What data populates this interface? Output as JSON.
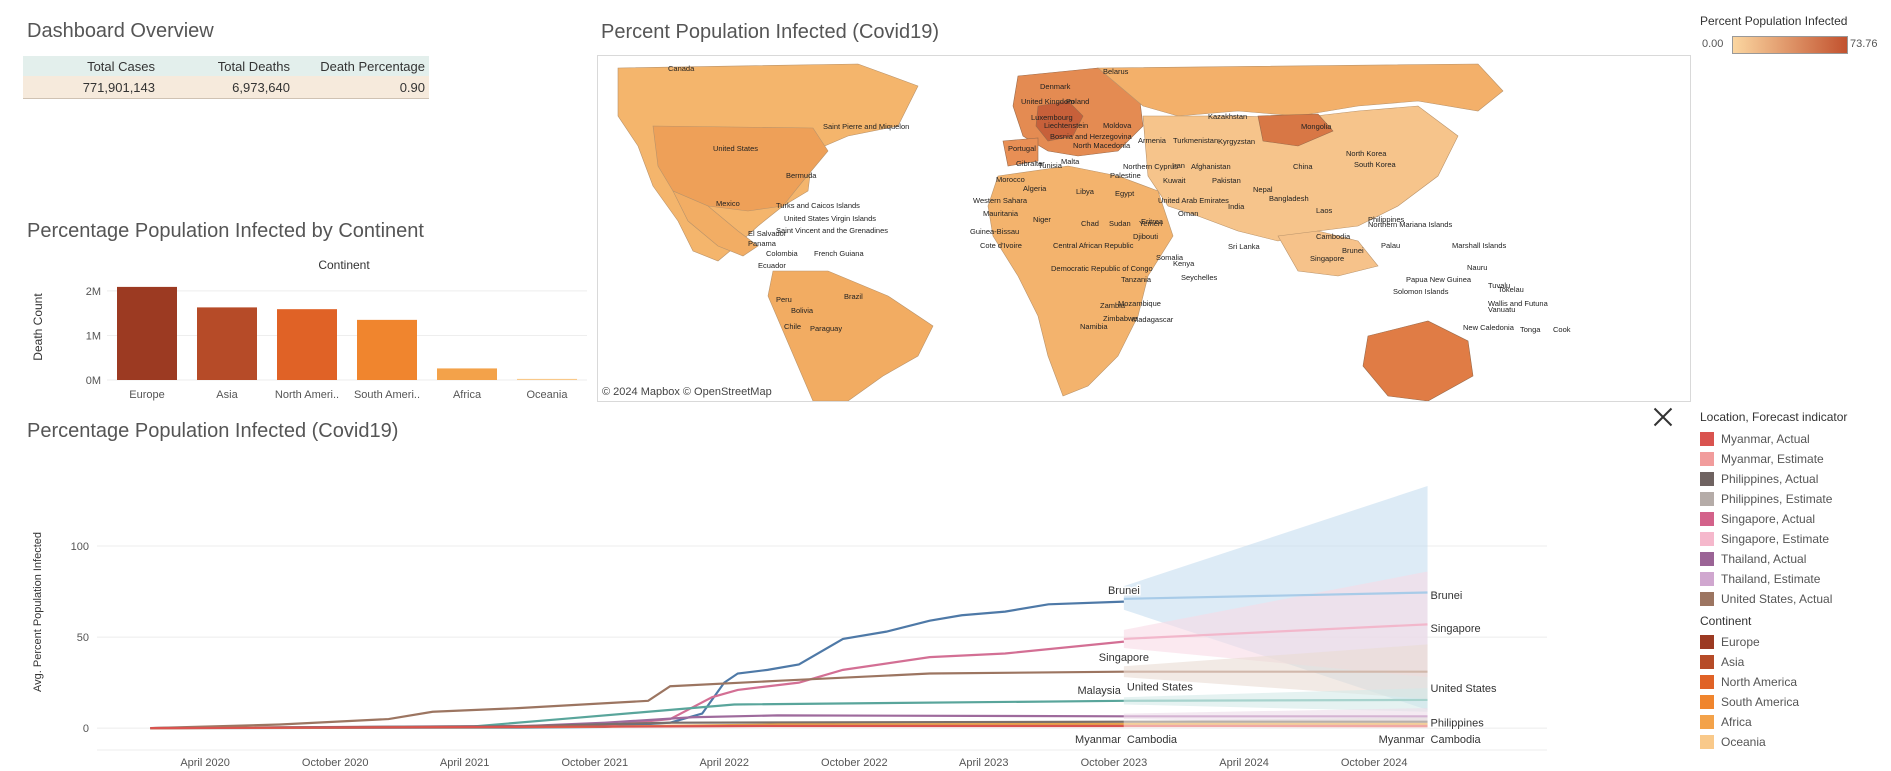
{
  "dashboard": {
    "title": "Dashboard Overview",
    "kpi": {
      "headers": [
        "Total Cases",
        "Total Deaths",
        "Death Percentage"
      ],
      "values": [
        "771,901,143",
        "6,973,640",
        "0.90"
      ]
    }
  },
  "map": {
    "title": "Percent Population Infected (Covid19)",
    "attribution": "© 2024 Mapbox  © OpenStreetMap",
    "legend": {
      "title": "Percent Population Infected",
      "min": "0.00",
      "max": "73.76",
      "color_low": "#fbd6a0",
      "color_high": "#c2522f"
    },
    "labels": [
      "Canada",
      "United States",
      "Saint Pierre and Miquelon",
      "Bermuda",
      "Mexico",
      "Turks and Caicos Islands",
      "United States Virgin Islands",
      "Saint Vincent and the Grenadines",
      "El Salvador",
      "Panama",
      "Colombia",
      "French Guiana",
      "Ecuador",
      "Brazil",
      "Peru",
      "Bolivia",
      "Chile",
      "Paraguay",
      "Denmark",
      "Belarus",
      "United Kingdom",
      "Poland",
      "Luxembourg",
      "Liechtenstein",
      "Moldova",
      "Bosnia and Herzegovina",
      "North Macedonia",
      "Portugal",
      "Gibraltar",
      "Tunisia",
      "Malta",
      "Northern Cyprus",
      "Palestine",
      "Morocco",
      "Algeria",
      "Libya",
      "Egypt",
      "Western Sahara",
      "Mauritania",
      "Niger",
      "Chad",
      "Sudan",
      "Eritrea",
      "Yemen",
      "Djibouti",
      "Guinea-Bissau",
      "Cote d'Ivoire",
      "Central African Republic",
      "Somalia",
      "Democratic Republic of Congo",
      "Kenya",
      "Tanzania",
      "Seychelles",
      "Zambia",
      "Mozambique",
      "Zimbabwe",
      "Madagascar",
      "Namibia",
      "Armenia",
      "Turkmenistan",
      "Kyrgyzstan",
      "Iran",
      "Afghanistan",
      "Kuwait",
      "Pakistan",
      "United Arab Emirates",
      "Oman",
      "India",
      "Nepal",
      "Bangladesh",
      "Sri Lanka",
      "Kazakhstan",
      "Mongolia",
      "China",
      "North Korea",
      "South Korea",
      "Laos",
      "Cambodia",
      "Brunei",
      "Singapore",
      "Philippines",
      "Northern Mariana Islands",
      "Palau",
      "Marshall Islands",
      "Nauru",
      "Papua New Guinea",
      "Solomon Islands",
      "Tuvalu",
      "Tokelau",
      "Wallis and Futuna",
      "Vanuatu",
      "New Caledonia",
      "Tonga",
      "Cook"
    ]
  },
  "continent_chart": {
    "title": "Percentage Population Infected by Continent",
    "header": "Continent",
    "chart_data": {
      "type": "bar",
      "categories": [
        "Europe",
        "Asia",
        "North Ameri..",
        "South Ameri..",
        "Africa",
        "Oceania"
      ],
      "values": [
        2090000,
        1630000,
        1590000,
        1350000,
        260000,
        25000
      ],
      "colors": [
        "#9c3a22",
        "#b64b28",
        "#e06226",
        "#f0852e",
        "#f3a24a",
        "#f9c98a"
      ],
      "ylabel": "Death Count",
      "yticks": [
        "2M",
        "1M",
        "0M"
      ],
      "ylim": [
        0,
        2200000
      ]
    }
  },
  "line_chart": {
    "title": "Percentage Population Infected (Covid19)",
    "chart_data": {
      "type": "line",
      "ylabel": "Avg. Percent Population Infected",
      "yticks": [
        0,
        50,
        100
      ],
      "ylim": [
        -12,
        150
      ],
      "xlim": [
        "2019-11-01",
        "2025-06-01"
      ],
      "xticks": [
        "April 2020",
        "October 2020",
        "April 2021",
        "October 2021",
        "April 2022",
        "October 2022",
        "April 2023",
        "October 2023",
        "April 2024",
        "October 2024"
      ],
      "forecast_start": "2023-10-15",
      "forecast_end": "2024-12-15",
      "series": [
        {
          "name": "Brunei",
          "color": "#4e79a7",
          "est_color": "#a8cbe8",
          "band_color": "#c6ddf0",
          "actual": [
            [
              "2020-01-15",
              0
            ],
            [
              "2021-06-15",
              0.3
            ],
            [
              "2021-10-15",
              0.7
            ],
            [
              "2022-01-15",
              3
            ],
            [
              "2022-03-01",
              8
            ],
            [
              "2022-04-01",
              25
            ],
            [
              "2022-04-20",
              30
            ],
            [
              "2022-06-01",
              32
            ],
            [
              "2022-07-15",
              35
            ],
            [
              "2022-09-15",
              49
            ],
            [
              "2022-11-15",
              53
            ],
            [
              "2023-01-15",
              59
            ],
            [
              "2023-03-01",
              62
            ],
            [
              "2023-05-01",
              64
            ],
            [
              "2023-07-01",
              68
            ],
            [
              "2023-10-15",
              69.5
            ]
          ],
          "estimate": [
            [
              "2023-10-15",
              71
            ],
            [
              "2024-12-15",
              74.5
            ]
          ],
          "band": [
            [
              65,
              78
            ],
            [
              10,
              133
            ]
          ]
        },
        {
          "name": "Singapore",
          "color": "#d36f94",
          "est_color": "#f2b7cb",
          "band_color": "#f9dbe6",
          "actual": [
            [
              "2020-01-15",
              0
            ],
            [
              "2021-10-15",
              1.5
            ],
            [
              "2022-01-15",
              5
            ],
            [
              "2022-03-15",
              17
            ],
            [
              "2022-04-20",
              21
            ],
            [
              "2022-07-15",
              25
            ],
            [
              "2022-09-15",
              32
            ],
            [
              "2023-01-15",
              39
            ],
            [
              "2023-05-01",
              41
            ],
            [
              "2023-10-15",
              47.5
            ]
          ],
          "estimate": [
            [
              "2023-10-15",
              49
            ],
            [
              "2024-12-15",
              57
            ]
          ],
          "band": [
            [
              44,
              54
            ],
            [
              28,
              86
            ]
          ]
        },
        {
          "name": "United States",
          "color": "#9c7561",
          "est_color": "#d1b8ab",
          "band_color": "#eadcd3",
          "actual": [
            [
              "2020-01-15",
              0
            ],
            [
              "2020-07-15",
              2
            ],
            [
              "2020-12-15",
              5
            ],
            [
              "2021-02-15",
              9
            ],
            [
              "2021-06-15",
              11
            ],
            [
              "2021-12-15",
              15
            ],
            [
              "2022-01-15",
              23
            ],
            [
              "2022-06-15",
              26
            ],
            [
              "2023-01-15",
              30
            ],
            [
              "2023-10-15",
              31
            ]
          ],
          "estimate": [
            [
              "2023-10-15",
              31
            ],
            [
              "2024-12-15",
              31
            ]
          ],
          "band": [
            [
              28,
              34
            ],
            [
              16,
              46
            ]
          ]
        },
        {
          "name": "Malaysia",
          "color": "#59a59b",
          "est_color": "#a7d3cd",
          "band_color": "#d3eae7",
          "actual": [
            [
              "2020-01-15",
              0
            ],
            [
              "2021-04-15",
              1
            ],
            [
              "2021-08-15",
              5
            ],
            [
              "2021-12-15",
              9
            ],
            [
              "2022-04-15",
              13
            ],
            [
              "2023-10-15",
              15
            ]
          ],
          "estimate": [
            [
              "2023-10-15",
              15
            ],
            [
              "2024-12-15",
              15.5
            ]
          ],
          "band": [
            [
              13,
              17
            ],
            [
              9,
              22
            ]
          ]
        },
        {
          "name": "Thailand",
          "color": "#9e6a9c",
          "est_color": "#d5b4d3",
          "band_color": "#ecdcea",
          "actual": [
            [
              "2020-01-15",
              0
            ],
            [
              "2021-06-15",
              1
            ],
            [
              "2021-10-15",
              3
            ],
            [
              "2022-02-15",
              6
            ],
            [
              "2022-06-15",
              7
            ],
            [
              "2023-10-15",
              6.5
            ]
          ],
          "estimate": [
            [
              "2023-10-15",
              6.5
            ],
            [
              "2024-12-15",
              6.5
            ]
          ],
          "band": [
            [
              5,
              8
            ],
            [
              2,
              11
            ]
          ]
        },
        {
          "name": "Philippines",
          "color": "#7a6f6b",
          "est_color": "#b8b0ac",
          "band_color": "#e2dedc",
          "actual": [
            [
              "2020-01-15",
              0
            ],
            [
              "2021-06-15",
              1
            ],
            [
              "2022-01-15",
              3
            ],
            [
              "2023-10-15",
              3.5
            ]
          ],
          "estimate": [
            [
              "2023-10-15",
              3.5
            ],
            [
              "2024-12-15",
              3.5
            ]
          ],
          "band": [
            [
              3,
              4
            ],
            [
              1,
              6
            ]
          ]
        },
        {
          "name": "Cambodia",
          "color": "#e6a34c",
          "est_color": "#f3cf9b",
          "band_color": "#f9e7cc",
          "actual": [
            [
              "2020-01-15",
              0
            ],
            [
              "2021-09-15",
              0.7
            ],
            [
              "2022-06-15",
              2
            ],
            [
              "2023-10-15",
              2.3
            ]
          ],
          "estimate": [
            [
              "2023-10-15",
              2.3
            ],
            [
              "2024-12-15",
              2.3
            ]
          ],
          "band": [
            [
              2,
              3
            ],
            [
              1,
              4
            ]
          ]
        },
        {
          "name": "Myanmar",
          "color": "#d9534f",
          "est_color": "#f0a8a6",
          "band_color": "#f8d5d4",
          "actual": [
            [
              "2020-01-15",
              0
            ],
            [
              "2021-09-15",
              0.8
            ],
            [
              "2022-06-15",
              1.2
            ],
            [
              "2023-10-15",
              1.2
            ]
          ],
          "estimate": [
            [
              "2023-10-15",
              1.2
            ],
            [
              "2024-12-15",
              1.2
            ]
          ],
          "band": [
            [
              1,
              1.5
            ],
            [
              0,
              2
            ]
          ]
        }
      ],
      "end_labels": [
        {
          "text": "Brunei",
          "date": "2023-10-15",
          "y": 76,
          "anchor": "middle"
        },
        {
          "text": "Singapore",
          "date": "2023-10-15",
          "y": 39,
          "anchor": "middle"
        },
        {
          "text": "Malaysia",
          "date": "2023-10-15",
          "y": 21,
          "anchor": "end"
        },
        {
          "text": "United States",
          "date": "2023-10-15",
          "y": 23,
          "anchor": "start"
        },
        {
          "text": "Myanmar",
          "date": "2023-10-15",
          "y": -6,
          "anchor": "end"
        },
        {
          "text": "Cambodia",
          "date": "2023-10-15",
          "y": -6,
          "anchor": "start"
        },
        {
          "text": "Brunei",
          "date": "2024-12-15",
          "y": 73,
          "anchor": "start"
        },
        {
          "text": "Singapore",
          "date": "2024-12-15",
          "y": 55,
          "anchor": "start"
        },
        {
          "text": "United States",
          "date": "2024-12-15",
          "y": 22,
          "anchor": "start"
        },
        {
          "text": "Philippines",
          "date": "2024-12-15",
          "y": 3,
          "anchor": "start"
        },
        {
          "text": "Myanmar",
          "date": "2024-12-15",
          "y": -6,
          "anchor": "end"
        },
        {
          "text": "Cambodia",
          "date": "2024-12-15",
          "y": -6,
          "anchor": "start"
        }
      ]
    },
    "legend": {
      "title": "Location, Forecast indicator",
      "items": [
        {
          "label": "Myanmar, Actual",
          "color": "#d9534f"
        },
        {
          "label": "Myanmar, Estimate",
          "color": "#f19c9c"
        },
        {
          "label": "Philippines, Actual",
          "color": "#6f6361"
        },
        {
          "label": "Philippines, Estimate",
          "color": "#b5aca8"
        },
        {
          "label": "Singapore, Actual",
          "color": "#d3628a"
        },
        {
          "label": "Singapore, Estimate",
          "color": "#f5b8cc"
        },
        {
          "label": "Thailand, Actual",
          "color": "#9b6496"
        },
        {
          "label": "Thailand, Estimate",
          "color": "#d0a7cf"
        },
        {
          "label": "United States, Actual",
          "color": "#9c7561"
        }
      ],
      "continent_title": "Continent",
      "continent_items": [
        {
          "label": "Europe",
          "color": "#9c3a22"
        },
        {
          "label": "Asia",
          "color": "#b64b28"
        },
        {
          "label": "North America",
          "color": "#e06226"
        },
        {
          "label": "South America",
          "color": "#f0852e"
        },
        {
          "label": "Africa",
          "color": "#f3a24a"
        },
        {
          "label": "Oceania",
          "color": "#f9c98a"
        }
      ]
    }
  }
}
